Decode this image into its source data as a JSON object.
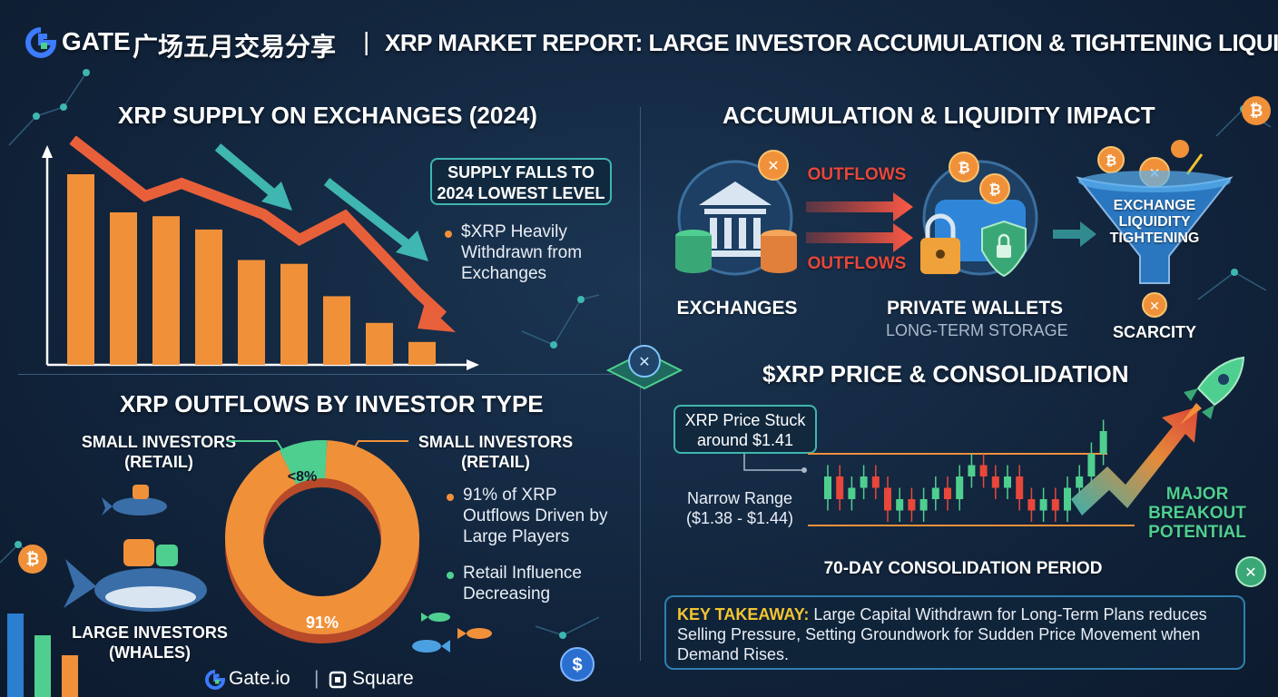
{
  "header": {
    "brand": "GATE",
    "brand_cjk": "广场五月交易分享",
    "separator": "|",
    "title": "XRP MARKET REPORT: LARGE INVESTOR ACCUMULATION & TIGHTENING LIQUIDITY"
  },
  "supply_panel": {
    "title": "XRP SUPPLY ON EXCHANGES (2024)",
    "callout": "SUPPLY FALLS TO 2024 LOWEST LEVEL",
    "bullet": "$XRP Heavily Withdrawn from Exchanges",
    "chart_data": {
      "type": "bar",
      "categories": [
        "",
        "",
        "",
        "",
        "",
        "",
        "",
        "",
        ""
      ],
      "values": [
        100,
        80,
        78,
        71,
        55,
        53,
        36,
        22,
        12
      ],
      "title": "XRP SUPPLY ON EXCHANGES (2024)",
      "xlabel": "",
      "ylabel": "",
      "bar_color": "#f0913a"
    }
  },
  "outflows_panel": {
    "title": "XRP OUTFLOWS BY INVESTOR TYPE",
    "left_small_label": "SMALL INVESTORS (RETAIL)",
    "left_large_label": "LARGE INVESTORS (WHALES)",
    "right_small_label": "SMALL INVESTORS (RETAIL)",
    "bullet_1": "91% of XRP Outflows Driven by Large Players",
    "bullet_2": "Retail Influence Decreasing",
    "chart_data": {
      "type": "pie",
      "slices": [
        {
          "label": "91%",
          "value": 91,
          "color": "#f0913a"
        },
        {
          "label": "<8%",
          "value": 8,
          "color": "#4fcf8f"
        }
      ]
    }
  },
  "accumulation_panel": {
    "title": "ACCUMULATION & LIQUIDITY IMPACT",
    "outflow_label_1": "OUTFLOWS",
    "outflow_label_2": "OUTFLOWS",
    "exchanges_label": "EXCHANGES",
    "wallets_label": "PRIVATE WALLETS",
    "wallets_sub": "LONG-TERM STORAGE",
    "funnel_label": "EXCHANGE LIQUIDITY TIGHTENING",
    "scarcity_label": "SCARCITY"
  },
  "price_panel": {
    "title": "$XRP PRICE & CONSOLIDATION",
    "price_box": "XRP Price Stuck around $1.41",
    "range_label": "Narrow Range ($1.38 - $1.44)",
    "period_label": "70-DAY CONSOLIDATION PERIOD",
    "breakout_label": "MAJOR BREAKOUT POTENTIAL",
    "candles": [
      {
        "o": 1.4,
        "c": 1.42,
        "h": 1.43,
        "l": 1.39
      },
      {
        "o": 1.42,
        "c": 1.4,
        "h": 1.43,
        "l": 1.39
      },
      {
        "o": 1.4,
        "c": 1.41,
        "h": 1.42,
        "l": 1.39
      },
      {
        "o": 1.41,
        "c": 1.42,
        "h": 1.43,
        "l": 1.4
      },
      {
        "o": 1.42,
        "c": 1.41,
        "h": 1.43,
        "l": 1.4
      },
      {
        "o": 1.41,
        "c": 1.39,
        "h": 1.42,
        "l": 1.38
      },
      {
        "o": 1.39,
        "c": 1.4,
        "h": 1.41,
        "l": 1.38
      },
      {
        "o": 1.4,
        "c": 1.39,
        "h": 1.41,
        "l": 1.38
      },
      {
        "o": 1.39,
        "c": 1.4,
        "h": 1.41,
        "l": 1.38
      },
      {
        "o": 1.4,
        "c": 1.41,
        "h": 1.42,
        "l": 1.39
      },
      {
        "o": 1.41,
        "c": 1.4,
        "h": 1.42,
        "l": 1.39
      },
      {
        "o": 1.4,
        "c": 1.42,
        "h": 1.43,
        "l": 1.39
      },
      {
        "o": 1.42,
        "c": 1.43,
        "h": 1.44,
        "l": 1.41
      },
      {
        "o": 1.43,
        "c": 1.42,
        "h": 1.44,
        "l": 1.41
      },
      {
        "o": 1.42,
        "c": 1.41,
        "h": 1.43,
        "l": 1.4
      },
      {
        "o": 1.41,
        "c": 1.42,
        "h": 1.43,
        "l": 1.4
      },
      {
        "o": 1.42,
        "c": 1.4,
        "h": 1.43,
        "l": 1.39
      },
      {
        "o": 1.4,
        "c": 1.39,
        "h": 1.41,
        "l": 1.38
      },
      {
        "o": 1.39,
        "c": 1.4,
        "h": 1.41,
        "l": 1.38
      },
      {
        "o": 1.4,
        "c": 1.39,
        "h": 1.41,
        "l": 1.38
      },
      {
        "o": 1.39,
        "c": 1.41,
        "h": 1.42,
        "l": 1.38
      },
      {
        "o": 1.41,
        "c": 1.42,
        "h": 1.43,
        "l": 1.4
      },
      {
        "o": 1.42,
        "c": 1.44,
        "h": 1.45,
        "l": 1.41
      },
      {
        "o": 1.44,
        "c": 1.46,
        "h": 1.47,
        "l": 1.43
      }
    ]
  },
  "takeaway": {
    "label": "KEY TAKEAWAY:",
    "text": "Large Capital Withdrawn for Long-Term Plans reduces Selling Pressure, Setting Groundwork for Sudden Price Movement when Demand Rises."
  },
  "footer": {
    "gate_io": "Gate.io",
    "divider": "|",
    "square": "Square"
  },
  "colors": {
    "accent_orange": "#f0913a",
    "accent_red": "#e8473a",
    "accent_green": "#4fcf8f",
    "accent_teal": "#3fb6b0",
    "highlight_yellow": "#f4c430"
  }
}
